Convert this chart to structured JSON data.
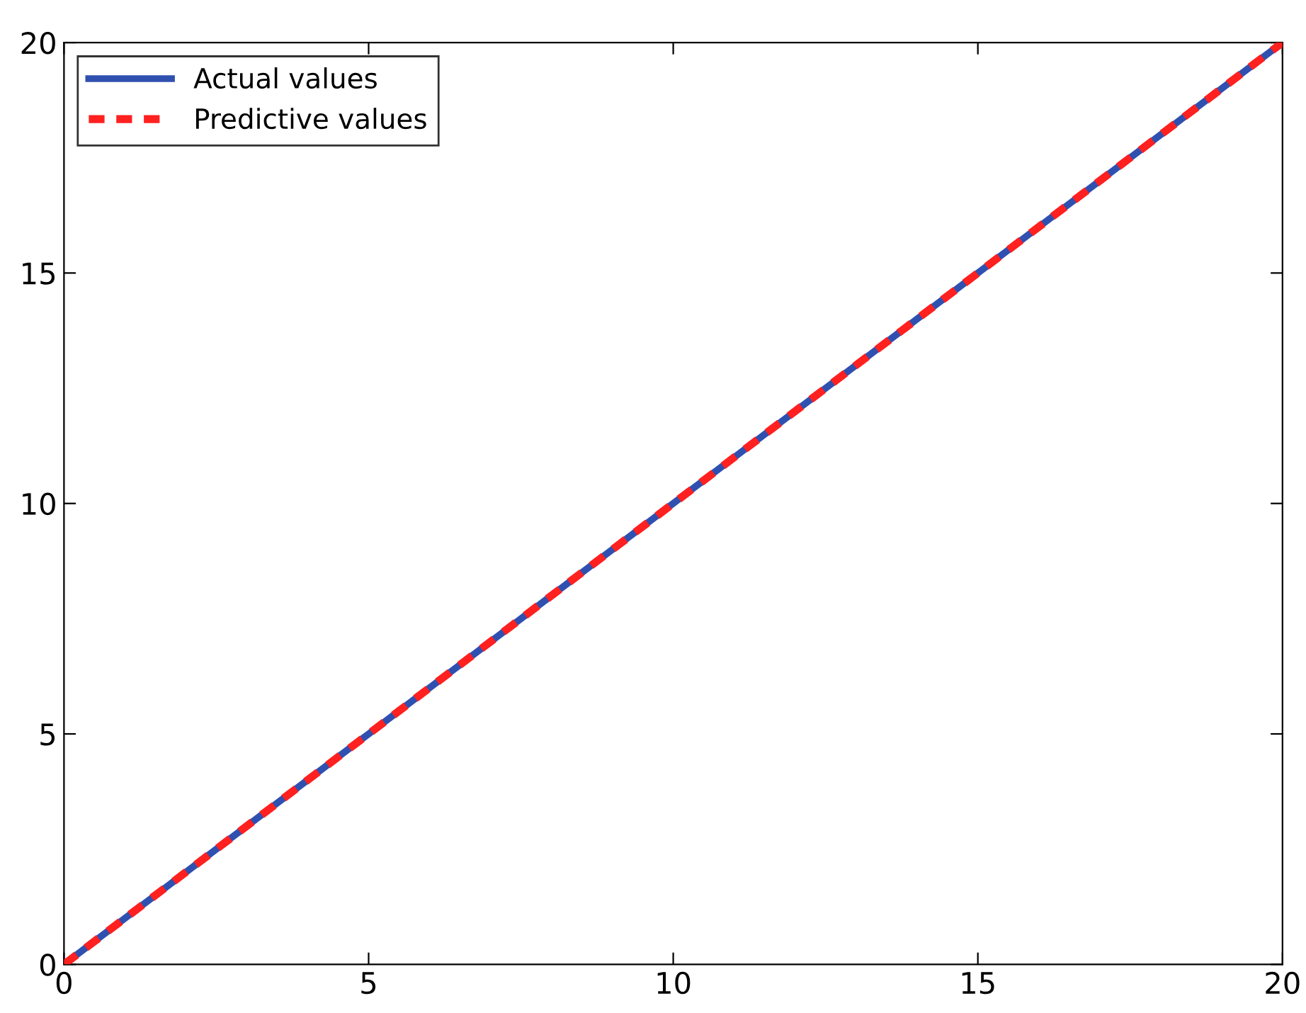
{
  "chart_data": {
    "type": "line",
    "x": [
      0,
      5,
      10,
      15,
      20
    ],
    "series": [
      {
        "name": "Actual values",
        "color": "#3050b0",
        "values": [
          0,
          5,
          10,
          15,
          20
        ],
        "line_style": "solid"
      },
      {
        "name": "Predictive values",
        "color": "#ff2020",
        "values": [
          0,
          5,
          10,
          15,
          20
        ],
        "line_style": "dashed"
      }
    ],
    "xlim": [
      0,
      20
    ],
    "ylim": [
      0,
      20
    ],
    "xticks": [
      0,
      5,
      10,
      15,
      20
    ],
    "yticks": [
      0,
      5,
      10,
      15,
      20
    ],
    "legend": "top left",
    "grid": false
  }
}
